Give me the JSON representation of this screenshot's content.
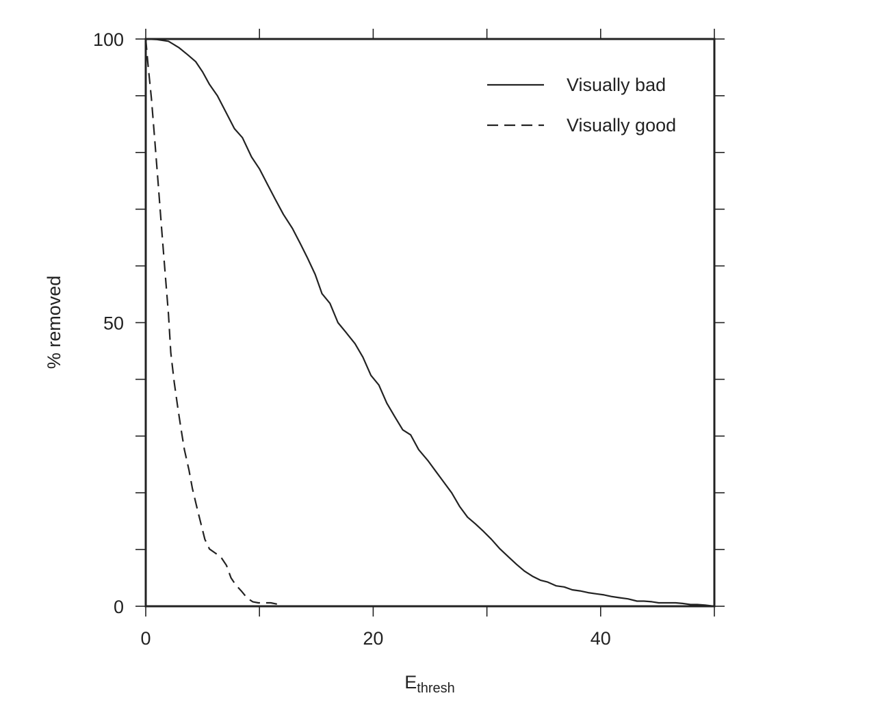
{
  "chart_data": {
    "type": "line",
    "title": "",
    "xlabel": "E",
    "xlabel_subscript": "thresh",
    "ylabel": "% removed",
    "xlim": [
      0,
      50
    ],
    "ylim": [
      0,
      100
    ],
    "x_major_ticks": [
      0,
      20,
      40
    ],
    "x_major_tick_labels": [
      "0",
      "20",
      "40"
    ],
    "x_minor_ticks": [
      10,
      30,
      50
    ],
    "y_major_ticks": [
      0,
      50,
      100
    ],
    "y_major_tick_labels": [
      "0",
      "50",
      "100"
    ],
    "y_minor_ticks": [
      10,
      20,
      30,
      40,
      60,
      70,
      80,
      90
    ],
    "grid": false,
    "legend_position": "top-right",
    "series": [
      {
        "name": "Visually bad",
        "style": "solid",
        "color": "#222222",
        "x": [
          0,
          1,
          2,
          2.9,
          3.7,
          4.4,
          5,
          5.6,
          6.3,
          7,
          7.8,
          8.5,
          9.3,
          10,
          10.7,
          11.4,
          12.1,
          12.9,
          13.6,
          14.2,
          14.9,
          15.5,
          16.2,
          16.9,
          17.6,
          18.4,
          19.1,
          19.8,
          20.5,
          21.2,
          21.9,
          22.6,
          23.3,
          24,
          24.8,
          25.5,
          26.2,
          26.9,
          27.6,
          28.3,
          29,
          29.7,
          30.4,
          31.1,
          31.9,
          32.6,
          33.3,
          34,
          34.7,
          35.3,
          36.1,
          36.8,
          37.5,
          38.2,
          38.9,
          39.6,
          40.3,
          41,
          41.7,
          42.4,
          43.2,
          43.8,
          44.5,
          45.1,
          45.9,
          46.6,
          47.2,
          47.9,
          48.5,
          49.2,
          50
        ],
        "y": [
          100,
          99.9,
          99.6,
          98.5,
          97.2,
          96,
          94.2,
          92,
          90,
          87.3,
          84.2,
          82.6,
          79.2,
          77.1,
          74.4,
          71.7,
          69.1,
          66.6,
          63.9,
          61.5,
          58.5,
          55.1,
          53.4,
          50,
          48.3,
          46.3,
          43.9,
          40.7,
          39,
          35.8,
          33.4,
          31.1,
          30.2,
          27.6,
          25.7,
          23.8,
          21.9,
          20,
          17.6,
          15.7,
          14.5,
          13.2,
          11.8,
          10.2,
          8.7,
          7.4,
          6.2,
          5.3,
          4.6,
          4.3,
          3.6,
          3.4,
          2.9,
          2.7,
          2.4,
          2.2,
          2,
          1.7,
          1.5,
          1.3,
          0.9,
          0.9,
          0.8,
          0.6,
          0.6,
          0.6,
          0.5,
          0.3,
          0.3,
          0.2,
          0
        ]
      },
      {
        "name": "Visually good",
        "style": "dashed",
        "color": "#222222",
        "x": [
          0,
          0.2,
          0.5,
          0.8,
          1.1,
          1.4,
          1.7,
          2,
          2.2,
          2.5,
          2.8,
          3.1,
          3.4,
          3.8,
          4.1,
          4.5,
          4.9,
          5.2,
          5.6,
          6.1,
          6.6,
          7.1,
          7.5,
          7.9,
          8.4,
          8.9,
          9.4,
          9.9,
          10.5,
          11,
          11.5,
          12.1,
          12.6,
          20,
          30,
          40,
          50
        ],
        "y": [
          100,
          95.5,
          89.5,
          82,
          74.3,
          66.4,
          58.8,
          51.5,
          44.7,
          39.5,
          35.3,
          31.3,
          27.6,
          24,
          20.8,
          17.4,
          14.2,
          11.8,
          10.1,
          9.4,
          8.7,
          7.2,
          5,
          3.8,
          2.7,
          1.5,
          0.8,
          0.6,
          0.6,
          0.6,
          0.4,
          0,
          0,
          0,
          0,
          0,
          0
        ]
      }
    ]
  }
}
